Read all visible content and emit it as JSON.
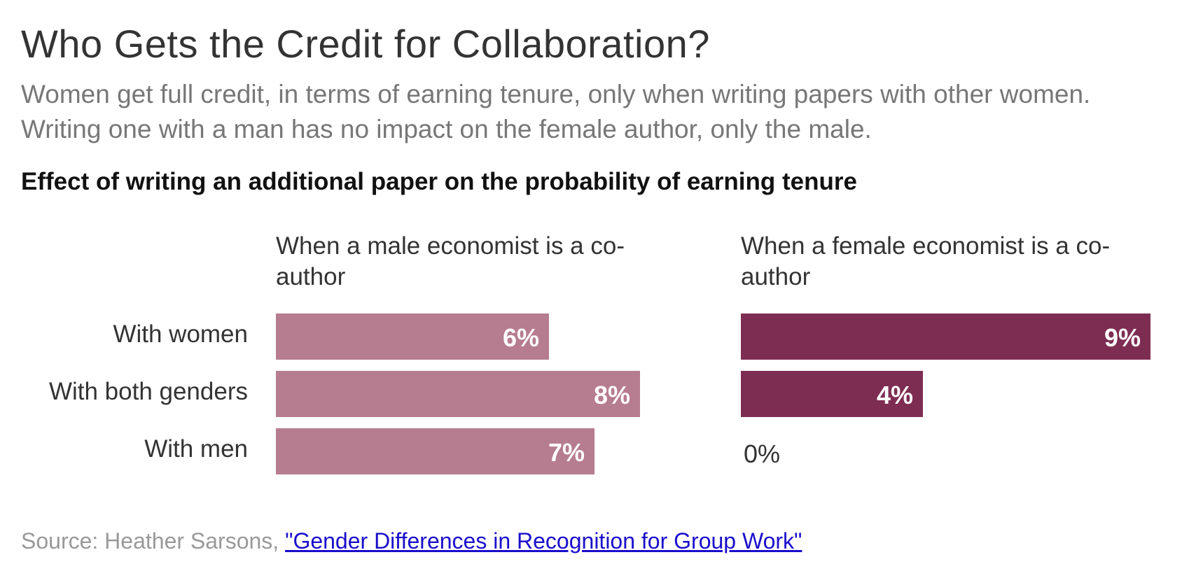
{
  "chart_data": {
    "type": "bar",
    "title": "Who Gets the Credit for Collaboration?",
    "subtitle": "Women get full credit, in terms of earning tenure, only when writing papers with other women. Writing one with a man has no impact on the female author, only the male.",
    "heading": "Effect of writing an additional paper on the probability of earning tenure",
    "categories": [
      "With women",
      "With both genders",
      "With men"
    ],
    "unit": "%",
    "xlim": [
      0,
      9
    ],
    "series": [
      {
        "name": "When a male economist is a co-author",
        "values": [
          6,
          8,
          7
        ],
        "labels": [
          "6%",
          "8%",
          "7%"
        ],
        "color": "#b67c90"
      },
      {
        "name": "When a female economist is a co-author",
        "values": [
          9,
          4,
          0
        ],
        "labels": [
          "9%",
          "4%",
          "0%"
        ],
        "color": "#7e2d52"
      }
    ]
  },
  "source": {
    "prefix": "Source: Heather Sarsons, ",
    "link_text": "\"Gender Differences in Recognition for Group Work\""
  }
}
